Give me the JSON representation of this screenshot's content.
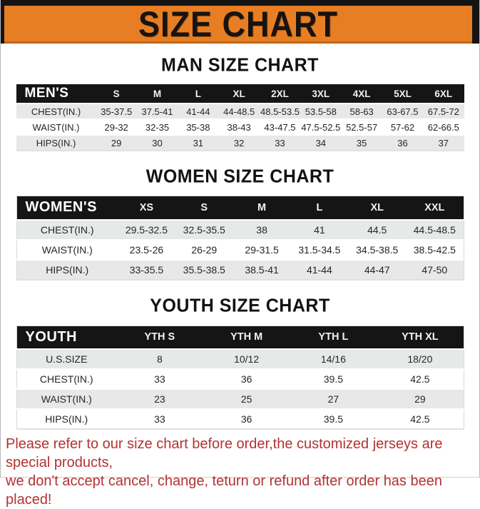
{
  "banner": {
    "title": "SIZE CHART",
    "bg_color": "#E87E23",
    "frame_color": "#141414"
  },
  "tables": [
    {
      "id": "men",
      "heading": "MAN SIZE CHART",
      "corner_label": "MEN'S",
      "columns": [
        "S",
        "M",
        "L",
        "XL",
        "2XL",
        "3XL",
        "4XL",
        "5XL",
        "6XL"
      ],
      "rows": [
        {
          "label": "CHEST(IN.)",
          "values": [
            "35-37.5",
            "37.5-41",
            "41-44",
            "44-48.5",
            "48.5-53.5",
            "53.5-58",
            "58-63",
            "63-67.5",
            "67.5-72"
          ]
        },
        {
          "label": "WAIST(IN.)",
          "values": [
            "29-32",
            "32-35",
            "35-38",
            "38-43",
            "43-47.5",
            "47.5-52.5",
            "52.5-57",
            "57-62",
            "62-66.5"
          ]
        },
        {
          "label": "HIPS(IN.)",
          "values": [
            "29",
            "30",
            "31",
            "32",
            "33",
            "34",
            "35",
            "36",
            "37"
          ]
        }
      ]
    },
    {
      "id": "women",
      "heading": "WOMEN SIZE CHART",
      "corner_label": "WOMEN'S",
      "columns": [
        "XS",
        "S",
        "M",
        "L",
        "XL",
        "XXL"
      ],
      "rows": [
        {
          "label": "CHEST(IN.)",
          "values": [
            "29.5-32.5",
            "32.5-35.5",
            "38",
            "41",
            "44.5",
            "44.5-48.5"
          ]
        },
        {
          "label": "WAIST(IN.)",
          "values": [
            "23.5-26",
            "26-29",
            "29-31.5",
            "31.5-34.5",
            "34.5-38.5",
            "38.5-42.5"
          ]
        },
        {
          "label": "HIPS(IN.)",
          "values": [
            "33-35.5",
            "35.5-38.5",
            "38.5-41",
            "41-44",
            "44-47",
            "47-50"
          ]
        }
      ]
    },
    {
      "id": "youth",
      "heading": "YOUTH SIZE CHART",
      "corner_label": "YOUTH",
      "columns": [
        "YTH S",
        "YTH M",
        "YTH L",
        "YTH XL"
      ],
      "rows": [
        {
          "label": "U.S.SIZE",
          "values": [
            "8",
            "10/12",
            "14/16",
            "18/20"
          ]
        },
        {
          "label": "CHEST(IN.)",
          "values": [
            "33",
            "36",
            "39.5",
            "42.5"
          ]
        },
        {
          "label": "WAIST(IN.)",
          "values": [
            "23",
            "25",
            "27",
            "29"
          ]
        },
        {
          "label": "HIPS(IN.)",
          "values": [
            "33",
            "36",
            "39.5",
            "42.5"
          ]
        }
      ]
    }
  ],
  "notice": {
    "color": "#B23331",
    "line1": "Please refer to our size chart before order,the customized jerseys are special products,",
    "line2": "we don't accept cancel, change, teturn or refund after order has been placed!"
  }
}
